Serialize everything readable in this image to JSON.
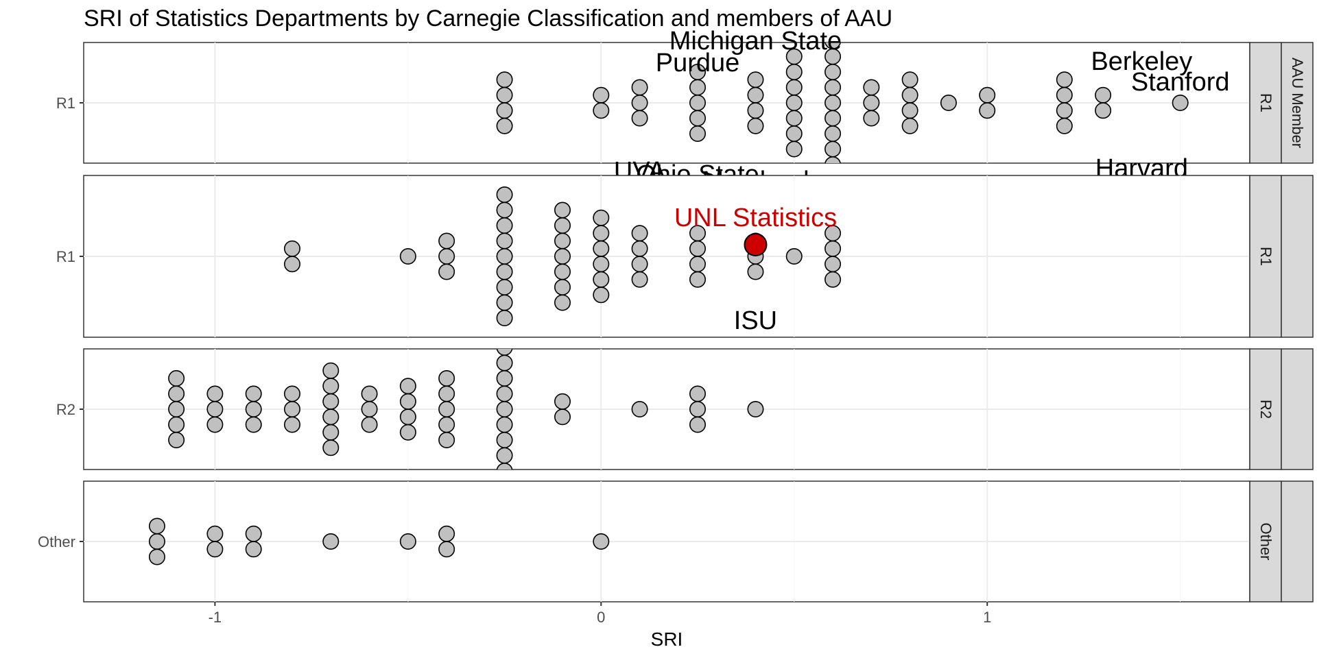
{
  "chart_data": {
    "type": "scatter",
    "subtype": "dotplot",
    "title": "SRI of Statistics Departments by Carnegie Classification and members of AAU",
    "xlabel": "SRI",
    "ylabel": "",
    "xlim": [
      -1.34,
      1.68
    ],
    "x_ticks": [
      -1,
      0,
      1
    ],
    "x_tick_labels": [
      "-1",
      "0",
      "1"
    ],
    "grid": true,
    "theme": "bw",
    "marker_fill": "#c0c0c0",
    "marker_stroke": "#000000",
    "highlight_color": "#cc0000",
    "outer_facet_label": "AAU Member",
    "panels": [
      {
        "row_label": "R1",
        "strip_label": "R1",
        "aau_member": true,
        "counts": [
          {
            "x": -0.25,
            "n": 4
          },
          {
            "x": 0.0,
            "n": 2
          },
          {
            "x": 0.1,
            "n": 3
          },
          {
            "x": 0.25,
            "n": 5
          },
          {
            "x": 0.4,
            "n": 4
          },
          {
            "x": 0.5,
            "n": 7
          },
          {
            "x": 0.6,
            "n": 9
          },
          {
            "x": 0.7,
            "n": 3
          },
          {
            "x": 0.8,
            "n": 4
          },
          {
            "x": 0.9,
            "n": 1
          },
          {
            "x": 1.0,
            "n": 2
          },
          {
            "x": 1.2,
            "n": 4
          },
          {
            "x": 1.3,
            "n": 2
          },
          {
            "x": 1.5,
            "n": 1
          }
        ],
        "annotations": [
          {
            "label": "Michigan State",
            "x": 0.4,
            "pos": "top"
          },
          {
            "label": "Purdue",
            "x": 0.25,
            "pos": "top"
          },
          {
            "label": "Berkeley",
            "x": 1.4,
            "pos": "top"
          },
          {
            "label": "Stanford",
            "x": 1.5,
            "pos": "top"
          },
          {
            "label": "Harvard",
            "x": 1.4,
            "pos": "bottom"
          },
          {
            "label": "UVA",
            "x": 0.1,
            "pos": "bottom"
          },
          {
            "label": "Ohio State",
            "x": 0.25,
            "pos": "bottom"
          },
          {
            "label": "Maryland",
            "x": 0.4,
            "pos": "bottom"
          }
        ]
      },
      {
        "row_label": "R1",
        "strip_label": "R1",
        "aau_member": false,
        "counts": [
          {
            "x": -0.8,
            "n": 2
          },
          {
            "x": -0.5,
            "n": 1
          },
          {
            "x": -0.4,
            "n": 3
          },
          {
            "x": -0.25,
            "n": 9
          },
          {
            "x": -0.1,
            "n": 7
          },
          {
            "x": 0.0,
            "n": 6
          },
          {
            "x": 0.1,
            "n": 4
          },
          {
            "x": 0.25,
            "n": 4
          },
          {
            "x": 0.4,
            "n": 3
          },
          {
            "x": 0.5,
            "n": 1
          },
          {
            "x": 0.6,
            "n": 4
          }
        ],
        "highlight": {
          "label": "UNL Statistics",
          "x": 0.4
        },
        "annotations": [
          {
            "label": "UNL Statistics",
            "x": 0.4,
            "pos": "top"
          },
          {
            "label": "ISU",
            "x": 0.4,
            "pos": "bottom"
          }
        ]
      },
      {
        "row_label": "R2",
        "strip_label": "R2",
        "aau_member": false,
        "counts": [
          {
            "x": -1.1,
            "n": 5
          },
          {
            "x": -1.0,
            "n": 3
          },
          {
            "x": -0.9,
            "n": 3
          },
          {
            "x": -0.8,
            "n": 3
          },
          {
            "x": -0.7,
            "n": 6
          },
          {
            "x": -0.6,
            "n": 3
          },
          {
            "x": -0.5,
            "n": 4
          },
          {
            "x": -0.4,
            "n": 5
          },
          {
            "x": -0.25,
            "n": 9
          },
          {
            "x": -0.1,
            "n": 2
          },
          {
            "x": 0.1,
            "n": 1
          },
          {
            "x": 0.25,
            "n": 3
          },
          {
            "x": 0.4,
            "n": 1
          }
        ],
        "annotations": []
      },
      {
        "row_label": "Other",
        "strip_label": "Other",
        "aau_member": false,
        "counts": [
          {
            "x": -1.15,
            "n": 3
          },
          {
            "x": -1.0,
            "n": 2
          },
          {
            "x": -0.9,
            "n": 2
          },
          {
            "x": -0.7,
            "n": 1
          },
          {
            "x": -0.5,
            "n": 1
          },
          {
            "x": -0.4,
            "n": 2
          },
          {
            "x": 0.0,
            "n": 1
          }
        ],
        "annotations": []
      }
    ]
  }
}
